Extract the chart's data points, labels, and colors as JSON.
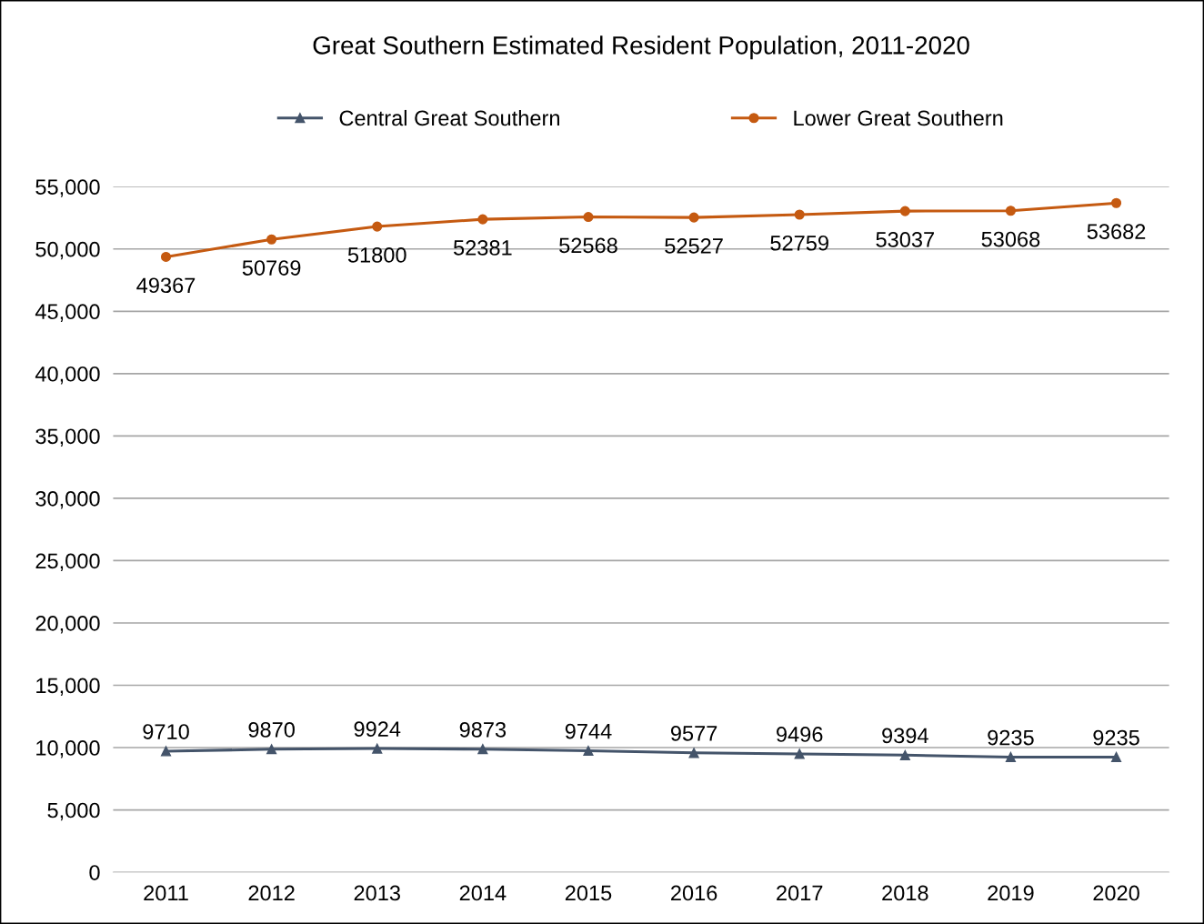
{
  "chart_data": {
    "type": "line",
    "title": "Great Southern Estimated Resident Population, 2011-2020",
    "categories": [
      "2011",
      "2012",
      "2013",
      "2014",
      "2015",
      "2016",
      "2017",
      "2018",
      "2019",
      "2020"
    ],
    "series": [
      {
        "name": "Central Great Southern",
        "color": "#44546a",
        "marker": "triangle",
        "values": [
          9710,
          9870,
          9924,
          9873,
          9744,
          9577,
          9496,
          9394,
          9235,
          9235
        ]
      },
      {
        "name": "Lower Great Southern",
        "color": "#c55a11",
        "marker": "circle",
        "values": [
          49367,
          50769,
          51800,
          52381,
          52568,
          52527,
          52759,
          53037,
          53068,
          53682
        ]
      }
    ],
    "ylim": [
      0,
      55000
    ],
    "yticks": [
      {
        "value": 0,
        "label": "0"
      },
      {
        "value": 5000,
        "label": "5,000"
      },
      {
        "value": 10000,
        "label": "10,000"
      },
      {
        "value": 15000,
        "label": "15,000"
      },
      {
        "value": 20000,
        "label": "20,000"
      },
      {
        "value": 25000,
        "label": "25,000"
      },
      {
        "value": 30000,
        "label": "30,000"
      },
      {
        "value": 35000,
        "label": "35,000"
      },
      {
        "value": 40000,
        "label": "40,000"
      },
      {
        "value": 45000,
        "label": "45,000"
      },
      {
        "value": 50000,
        "label": "50,000"
      },
      {
        "value": 55000,
        "label": "55,000"
      }
    ],
    "grid": "y",
    "legend": "top",
    "data_labels": true,
    "line_style": "solid"
  }
}
